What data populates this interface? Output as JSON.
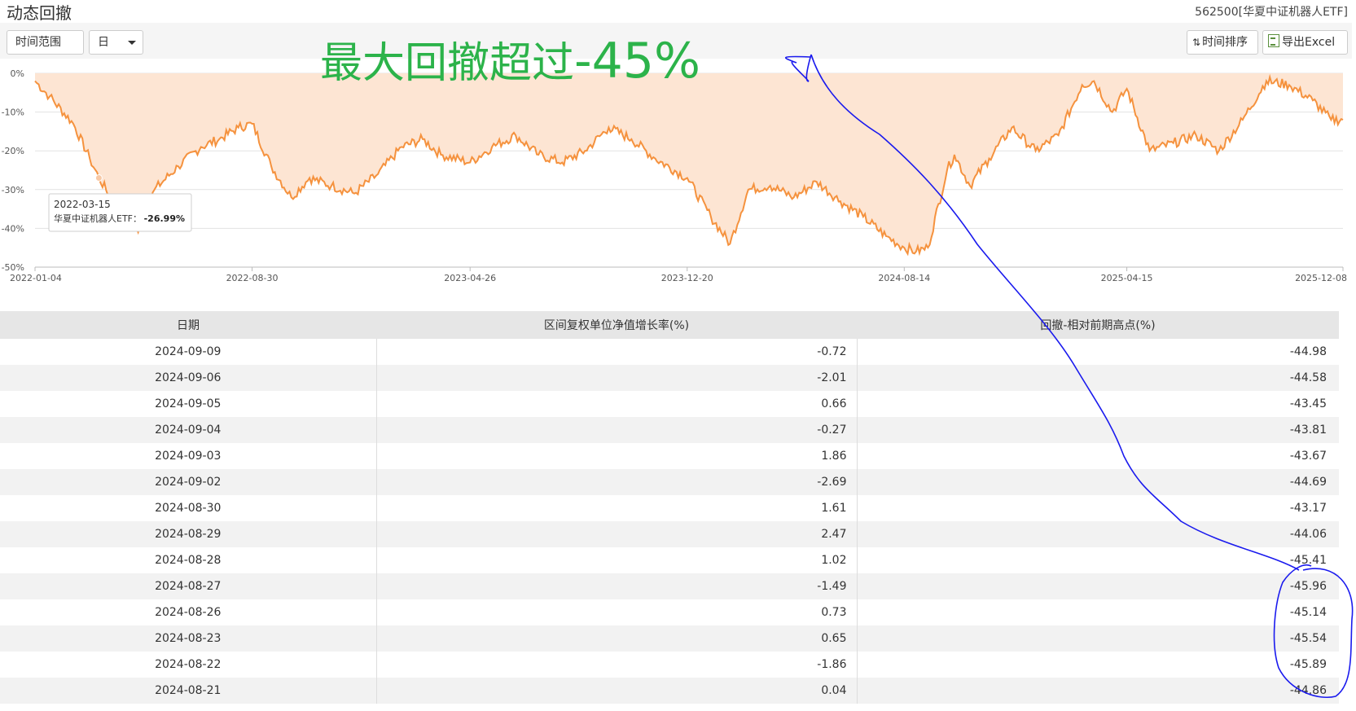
{
  "header": {
    "title": "动态回撤",
    "fund_code": "562500[华夏中证机器人ETF]"
  },
  "toolbar": {
    "time_range_label": "时间范围",
    "period_value": "日",
    "sort_label": "时间排序",
    "export_label": "导出Excel",
    "sort_icon": "sort-arrows-icon",
    "export_icon": "excel-icon"
  },
  "annotation": {
    "text_prefix": "最大回撤超过",
    "text_value": "-45%",
    "color": "#2cb34a",
    "pen_color": "#1a1aee"
  },
  "tooltip": {
    "date": "2022-03-15",
    "series_label": "华夏中证机器人ETF：",
    "value": "-26.99%"
  },
  "chart_data": {
    "type": "area",
    "title": "",
    "xlabel": "",
    "ylabel": "",
    "ylim": [
      -50,
      0
    ],
    "yticks": [
      "0%",
      "-10%",
      "-20%",
      "-30%",
      "-40%",
      "-50%"
    ],
    "xticks": [
      "2022-01-04",
      "2022-08-30",
      "2023-04-26",
      "2023-12-20",
      "2024-08-14",
      "2025-04-15",
      "2025-12-08"
    ],
    "line_color": "#f5923e",
    "fill_color": "#fde5d3",
    "grid": true,
    "series": [
      {
        "x": [
          "2022-01-04",
          "2022-01-20",
          "2022-02-15",
          "2022-03-05",
          "2022-03-15",
          "2022-04-10",
          "2022-04-27",
          "2022-05-15",
          "2022-06-10",
          "2022-07-05",
          "2022-07-25",
          "2022-08-15",
          "2022-08-30",
          "2022-09-20",
          "2022-10-12",
          "2022-11-01",
          "2022-11-25",
          "2022-12-20",
          "2023-01-15",
          "2023-02-10",
          "2023-03-05",
          "2023-03-25",
          "2023-04-26",
          "2023-05-20",
          "2023-06-15",
          "2023-07-10",
          "2023-08-05",
          "2023-08-30",
          "2023-09-25",
          "2023-10-20",
          "2023-11-15",
          "2023-12-20",
          "2024-01-15",
          "2024-02-05",
          "2024-02-25",
          "2024-03-20",
          "2024-04-15",
          "2024-05-10",
          "2024-06-05",
          "2024-06-30",
          "2024-07-25",
          "2024-08-14",
          "2024-08-27",
          "2024-09-09",
          "2024-09-30",
          "2024-10-08",
          "2024-10-25",
          "2024-11-15",
          "2024-12-10",
          "2025-01-05",
          "2025-01-30",
          "2025-02-25",
          "2025-03-10",
          "2025-03-30",
          "2025-04-15",
          "2025-05-10",
          "2025-06-05",
          "2025-06-30",
          "2025-07-25",
          "2025-08-20",
          "2025-09-15",
          "2025-10-10",
          "2025-11-05",
          "2025-11-25",
          "2025-12-08"
        ],
        "values": [
          -2,
          -6,
          -13,
          -22,
          -26.99,
          -37,
          -41,
          -30,
          -24,
          -19,
          -17,
          -14,
          -13,
          -24,
          -32,
          -27,
          -29,
          -31,
          -26,
          -19,
          -17,
          -21,
          -23,
          -19,
          -16,
          -21,
          -23,
          -20,
          -14,
          -17,
          -22,
          -27,
          -37,
          -44,
          -30,
          -29,
          -32,
          -28,
          -33,
          -37,
          -42,
          -45,
          -45.96,
          -44.98,
          -25,
          -21,
          -29,
          -22,
          -14,
          -20,
          -16,
          -3,
          -2,
          -10,
          -4,
          -20,
          -18,
          -16,
          -20,
          -12,
          -2,
          -3,
          -7,
          -12,
          -12
        ]
      }
    ]
  },
  "table": {
    "columns": [
      "日期",
      "区间复权单位净值增长率(%)",
      "回撤-相对前期高点(%)"
    ],
    "rows": [
      [
        "2024-09-09",
        "-0.72",
        "-44.98"
      ],
      [
        "2024-09-06",
        "-2.01",
        "-44.58"
      ],
      [
        "2024-09-05",
        "0.66",
        "-43.45"
      ],
      [
        "2024-09-04",
        "-0.27",
        "-43.81"
      ],
      [
        "2024-09-03",
        "1.86",
        "-43.67"
      ],
      [
        "2024-09-02",
        "-2.69",
        "-44.69"
      ],
      [
        "2024-08-30",
        "1.61",
        "-43.17"
      ],
      [
        "2024-08-29",
        "2.47",
        "-44.06"
      ],
      [
        "2024-08-28",
        "1.02",
        "-45.41"
      ],
      [
        "2024-08-27",
        "-1.49",
        "-45.96"
      ],
      [
        "2024-08-26",
        "0.73",
        "-45.14"
      ],
      [
        "2024-08-23",
        "0.65",
        "-45.54"
      ],
      [
        "2024-08-22",
        "-1.86",
        "-45.89"
      ],
      [
        "2024-08-21",
        "0.04",
        "-44.86"
      ]
    ]
  }
}
